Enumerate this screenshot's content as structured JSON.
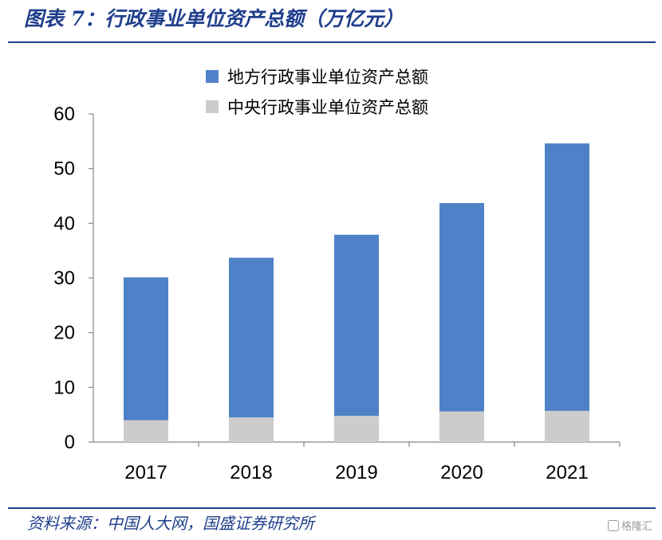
{
  "figure": {
    "title": "图表 7：行政事业单位资产总额（万亿元）",
    "source": "资料来源：中国人大网，国盛证券研究所",
    "watermark": "格隆汇"
  },
  "colors": {
    "local": "#4f81c8",
    "central": "#cccccc",
    "accent": "#1f3e8c"
  },
  "chart_data": {
    "type": "bar",
    "stacked": true,
    "categories": [
      "2017",
      "2018",
      "2019",
      "2020",
      "2021"
    ],
    "series": [
      {
        "name": "中央行政事业单位资产总额",
        "values": [
          4.0,
          4.5,
          4.8,
          5.6,
          5.7
        ]
      },
      {
        "name": "地方行政事业单位资产总额",
        "values": [
          26.1,
          29.2,
          33.1,
          38.1,
          48.9
        ]
      }
    ],
    "ylim": [
      0,
      60
    ],
    "yticks": [
      0,
      10,
      20,
      30,
      40,
      50,
      60
    ],
    "legend_position": "top",
    "grid": false
  }
}
